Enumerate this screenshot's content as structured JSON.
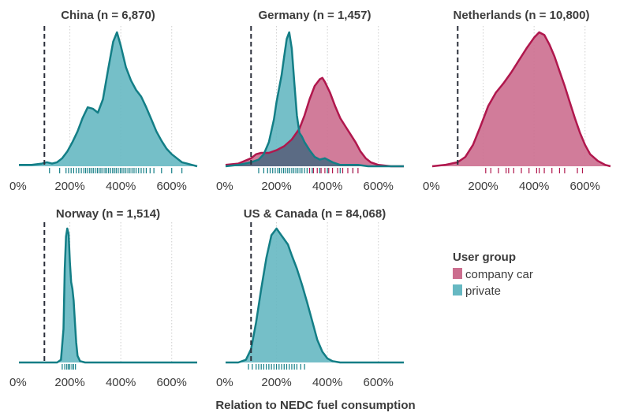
{
  "chart_data": {
    "type": "area",
    "xlabel": "Relation to NEDC fuel consumption",
    "xlim": [
      0,
      700
    ],
    "x_ticks": [
      0,
      200,
      400,
      600
    ],
    "x_tick_labels": [
      "0%",
      "200%",
      "400%",
      "600%"
    ],
    "reference_line_x": 100,
    "grid": "vertical dotted at 200, 400, 600",
    "legend": {
      "title": "User group",
      "placement": "right, below top row",
      "entries": [
        {
          "key": "company",
          "label": "company car",
          "color": "#cc6e8f"
        },
        {
          "key": "private",
          "label": "private",
          "color": "#66b8c2"
        }
      ]
    },
    "colors": {
      "company_fill": "#cc6e8f",
      "company_line": "#b0174d",
      "private_fill": "#66b8c2",
      "private_line": "#137e86",
      "overlap_fill": "#5b6b84",
      "refline": "#2b2f3a",
      "grid": "#cfcfcf",
      "rug": "#137e86"
    },
    "panels": [
      {
        "title": "China (n = 6,870)",
        "series": [
          {
            "group": "private",
            "x": [
              0,
              50,
              90,
              110,
              130,
              150,
              170,
              190,
              210,
              230,
              250,
              270,
              290,
              310,
              330,
              350,
              370,
              385,
              400,
              420,
              440,
              460,
              480,
              500,
              520,
              540,
              560,
              580,
              600,
              620,
              640,
              660,
              680,
              700
            ],
            "y": [
              0.01,
              0.01,
              0.02,
              0.03,
              0.02,
              0.03,
              0.06,
              0.11,
              0.18,
              0.26,
              0.36,
              0.44,
              0.43,
              0.4,
              0.5,
              0.72,
              0.93,
              1.0,
              0.9,
              0.74,
              0.64,
              0.57,
              0.52,
              0.44,
              0.35,
              0.26,
              0.19,
              0.13,
              0.09,
              0.06,
              0.03,
              0.02,
              0.01,
              0.0
            ]
          }
        ],
        "rug": [
          {
            "group": "private",
            "x": [
              120,
              160,
              185,
              195,
              205,
              215,
              225,
              235,
              245,
              255,
              262,
              270,
              278,
              285,
              292,
              300,
              308,
              315,
              322,
              330,
              338,
              345,
              352,
              360,
              368,
              375,
              382,
              390,
              398,
              405,
              412,
              420,
              428,
              436,
              444,
              452,
              460,
              470,
              480,
              490,
              500,
              515,
              530,
              560,
              600,
              640
            ]
          }
        ]
      },
      {
        "title": "Germany (n = 1,457)",
        "series": [
          {
            "group": "company",
            "x": [
              0,
              50,
              100,
              120,
              140,
              170,
              200,
              230,
              260,
              290,
              310,
              330,
              350,
              370,
              380,
              390,
              410,
              430,
              450,
              470,
              490,
              510,
              530,
              550,
              570,
              600,
              650,
              700
            ],
            "y": [
              0.01,
              0.02,
              0.06,
              0.09,
              0.1,
              0.1,
              0.12,
              0.15,
              0.2,
              0.28,
              0.38,
              0.5,
              0.6,
              0.65,
              0.66,
              0.63,
              0.55,
              0.45,
              0.36,
              0.3,
              0.24,
              0.18,
              0.11,
              0.06,
              0.03,
              0.01,
              0.0,
              0.0
            ]
          },
          {
            "group": "private",
            "x": [
              0,
              50,
              100,
              130,
              150,
              170,
              190,
              200,
              210,
              220,
              230,
              240,
              250,
              260,
              270,
              280,
              290,
              300,
              310,
              330,
              350,
              370,
              390,
              420,
              450,
              480,
              520,
              560,
              600,
              700
            ],
            "y": [
              0.0,
              0.01,
              0.03,
              0.05,
              0.09,
              0.18,
              0.35,
              0.48,
              0.58,
              0.68,
              0.82,
              0.95,
              1.0,
              0.88,
              0.62,
              0.38,
              0.25,
              0.22,
              0.18,
              0.12,
              0.07,
              0.05,
              0.06,
              0.03,
              0.01,
              0.01,
              0.01,
              0.0,
              0.0,
              0.0
            ]
          }
        ],
        "rug": [
          {
            "group": "private",
            "x": [
              130,
              150,
              165,
              175,
              185,
              195,
              205,
              212,
              220,
              228,
              236,
              244,
              252,
              260,
              268,
              276,
              284,
              292,
              300,
              310,
              320,
              340,
              370,
              400,
              450,
              500
            ]
          },
          {
            "group": "company",
            "x": [
              330,
              345,
              360,
              375,
              390,
              405,
              420,
              440,
              460,
              480,
              500,
              520
            ]
          }
        ]
      },
      {
        "title": "Netherlands (n = 10,800)",
        "series": [
          {
            "group": "company",
            "x": [
              0,
              50,
              100,
              130,
              160,
              190,
              220,
              250,
              280,
              310,
              340,
              370,
              400,
              420,
              440,
              460,
              480,
              500,
              520,
              540,
              560,
              580,
              600,
              620,
              650,
              680,
              700
            ],
            "y": [
              0.0,
              0.01,
              0.03,
              0.07,
              0.16,
              0.3,
              0.45,
              0.55,
              0.62,
              0.7,
              0.79,
              0.88,
              0.96,
              1.0,
              0.98,
              0.91,
              0.82,
              0.71,
              0.6,
              0.48,
              0.36,
              0.25,
              0.16,
              0.09,
              0.04,
              0.01,
              0.0
            ]
          }
        ],
        "rug": [
          {
            "group": "company",
            "x": [
              210,
              230,
              260,
              290,
              300,
              320,
              350,
              380,
              410,
              420,
              440,
              470,
              500,
              520,
              570,
              590
            ]
          }
        ]
      },
      {
        "title": "Norway (n = 1,514)",
        "series": [
          {
            "group": "private",
            "x": [
              0,
              100,
              150,
              165,
              175,
              180,
              185,
              190,
              195,
              200,
              205,
              210,
              215,
              220,
              225,
              230,
              240,
              260,
              300,
              700
            ],
            "y": [
              0.0,
              0.0,
              0.0,
              0.02,
              0.25,
              0.7,
              0.94,
              1.0,
              0.96,
              0.75,
              0.6,
              0.55,
              0.46,
              0.3,
              0.15,
              0.05,
              0.01,
              0.0,
              0.0,
              0.0
            ]
          }
        ],
        "rug": [
          {
            "group": "private",
            "x": [
              170,
              180,
              188,
              194,
              200,
              208,
              215,
              222
            ]
          }
        ]
      },
      {
        "title": "US & Canada (n = 84,068)",
        "series": [
          {
            "group": "private",
            "x": [
              0,
              50,
              80,
              100,
              120,
              140,
              160,
              180,
              200,
              215,
              230,
              245,
              260,
              280,
              300,
              320,
              340,
              360,
              380,
              400,
              420,
              450,
              500,
              700
            ],
            "y": [
              0.0,
              0.0,
              0.02,
              0.1,
              0.3,
              0.55,
              0.78,
              0.95,
              1.0,
              0.96,
              0.92,
              0.88,
              0.8,
              0.7,
              0.58,
              0.45,
              0.31,
              0.17,
              0.08,
              0.03,
              0.01,
              0.0,
              0.0,
              0.0
            ]
          }
        ],
        "rug": [
          {
            "group": "private",
            "x": [
              90,
              105,
              120,
              130,
              140,
              150,
              160,
              170,
              180,
              190,
              200,
              210,
              220,
              230,
              240,
              250,
              260,
              270,
              280,
              295,
              310
            ]
          }
        ]
      }
    ]
  }
}
